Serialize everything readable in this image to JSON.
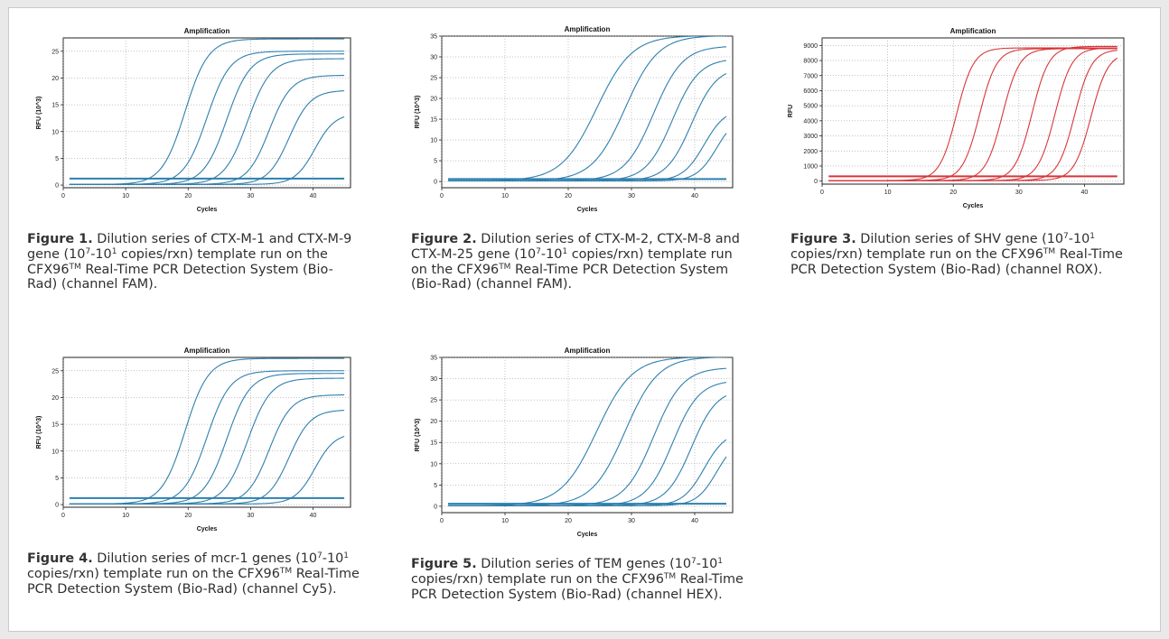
{
  "figures": [
    {
      "caption_label": "Figure 1.",
      "caption_parts": [
        "Dilution series of CTX-M-1 and CTX-M-9 gene (10",
        "7",
        "-10",
        "1",
        " copies/rxn) template run on the CFX96",
        "TM",
        " Real-Time PCR Detection System (Bio-Rad) (channel FAM)."
      ]
    },
    {
      "caption_label": "Figure 2.",
      "caption_parts": [
        "Dilution series of CTX-M-2, CTX-M-8 and CTX-M-25 gene (10",
        "7",
        "-10",
        "1",
        " copies/rxn) template run on the CFX96",
        "TM",
        " Real-Time PCR Detection System (Bio-Rad) (channel FAM)."
      ]
    },
    {
      "caption_label": "Figure 3.",
      "caption_parts": [
        "Dilution series of SHV gene (10",
        "7",
        "-10",
        "1",
        " copies/rxn) template run on the CFX96",
        "TM",
        " Real-Time PCR Detection System (Bio-Rad) (channel ROX)."
      ]
    },
    {
      "caption_label": "Figure 4.",
      "caption_parts": [
        "Dilution series of mcr-1 genes (10",
        "7",
        "-10",
        "1",
        " copies/rxn) template run on the CFX96",
        "TM",
        " Real-Time PCR Detection System (Bio-Rad) (channel Cy5)."
      ]
    },
    {
      "caption_label": "Figure 5.",
      "caption_parts": [
        "Dilution series of TEM genes (10",
        "7",
        "-10",
        "1",
        " copies/rxn) template run on the CFX96",
        "TM",
        " Real-Time PCR Detection System (Bio-Rad) (channel HEX)."
      ]
    }
  ],
  "chart_data": [
    {
      "type": "line",
      "title": "Amplification",
      "xlabel": "Cycles",
      "ylabel": "RFU (10^3)",
      "xlim": [
        0,
        46
      ],
      "ylim": [
        -0.5,
        27.5
      ],
      "xticks": [
        0,
        10,
        20,
        30,
        40
      ],
      "yticks": [
        0,
        5,
        10,
        15,
        20,
        25
      ],
      "grid": true,
      "line_color": "#2e7fae",
      "threshold": 1.2,
      "series": [
        {
          "midpoint": 19.5,
          "plateau": 27.2,
          "slope": 1.85
        },
        {
          "midpoint": 23.0,
          "plateau": 24.9,
          "slope": 1.85
        },
        {
          "midpoint": 26.2,
          "plateau": 24.4,
          "slope": 1.85
        },
        {
          "midpoint": 29.5,
          "plateau": 23.5,
          "slope": 1.85
        },
        {
          "midpoint": 33.0,
          "plateau": 20.4,
          "slope": 1.75
        },
        {
          "midpoint": 36.2,
          "plateau": 17.6,
          "slope": 1.7
        },
        {
          "midpoint": 40.3,
          "plateau": 13.3,
          "slope": 1.6
        }
      ]
    },
    {
      "type": "line",
      "title": "Amplification",
      "xlabel": "Cycles",
      "ylabel": "RFU (10^3)",
      "xlim": [
        0,
        46
      ],
      "ylim": [
        -1.5,
        35
      ],
      "xticks": [
        0,
        10,
        20,
        30,
        40
      ],
      "yticks": [
        0,
        5,
        10,
        15,
        20,
        25,
        30,
        35
      ],
      "grid": true,
      "line_color": "#2e7fae",
      "threshold": 0.6,
      "series": [
        {
          "midpoint": 24.5,
          "plateau": 35.0,
          "slope": 2.8
        },
        {
          "midpoint": 29.0,
          "plateau": 35.0,
          "slope": 2.6
        },
        {
          "midpoint": 33.5,
          "plateau": 32.5,
          "slope": 2.3
        },
        {
          "midpoint": 36.5,
          "plateau": 29.5,
          "slope": 2.1
        },
        {
          "midpoint": 39.5,
          "plateau": 27.5,
          "slope": 2.0
        },
        {
          "midpoint": 41.5,
          "plateau": 17.5,
          "slope": 1.7
        },
        {
          "midpoint": 43.5,
          "plateau": 16.0,
          "slope": 1.6
        }
      ]
    },
    {
      "type": "line",
      "title": "Amplification",
      "xlabel": "Cycles",
      "ylabel": "RFU",
      "xlim": [
        0,
        46
      ],
      "ylim": [
        -200,
        9500
      ],
      "xticks": [
        0,
        10,
        20,
        30,
        40
      ],
      "yticks": [
        0,
        1000,
        2000,
        3000,
        4000,
        5000,
        6000,
        7000,
        8000,
        9000
      ],
      "grid": true,
      "line_color": "#d8363a",
      "threshold": 320,
      "series": [
        {
          "midpoint": 20.5,
          "plateau": 8800,
          "slope": 1.3
        },
        {
          "midpoint": 24.0,
          "plateau": 8750,
          "slope": 1.3
        },
        {
          "midpoint": 27.5,
          "plateau": 8750,
          "slope": 1.3
        },
        {
          "midpoint": 32.0,
          "plateau": 8900,
          "slope": 1.3
        },
        {
          "midpoint": 35.5,
          "plateau": 8800,
          "slope": 1.3
        },
        {
          "midpoint": 38.5,
          "plateau": 8700,
          "slope": 1.3
        },
        {
          "midpoint": 41.0,
          "plateau": 8500,
          "slope": 1.3
        }
      ]
    },
    {
      "type": "line",
      "title": "Amplification",
      "xlabel": "Cycles",
      "ylabel": "RFU (10^3)",
      "xlim": [
        0,
        46
      ],
      "ylim": [
        -0.5,
        27.5
      ],
      "xticks": [
        0,
        10,
        20,
        30,
        40
      ],
      "yticks": [
        0,
        5,
        10,
        15,
        20,
        25
      ],
      "grid": true,
      "line_color": "#2e7fae",
      "threshold": 1.2,
      "series": [
        {
          "midpoint": 19.5,
          "plateau": 27.2,
          "slope": 1.85
        },
        {
          "midpoint": 23.0,
          "plateau": 24.9,
          "slope": 1.85
        },
        {
          "midpoint": 26.2,
          "plateau": 24.4,
          "slope": 1.85
        },
        {
          "midpoint": 29.5,
          "plateau": 23.5,
          "slope": 1.85
        },
        {
          "midpoint": 33.0,
          "plateau": 20.4,
          "slope": 1.75
        },
        {
          "midpoint": 36.2,
          "plateau": 17.6,
          "slope": 1.7
        },
        {
          "midpoint": 40.3,
          "plateau": 13.3,
          "slope": 1.6
        }
      ]
    },
    {
      "type": "line",
      "title": "Amplification",
      "xlabel": "Cycles",
      "ylabel": "RFU (10^3)",
      "xlim": [
        0,
        46
      ],
      "ylim": [
        -1.5,
        35
      ],
      "xticks": [
        0,
        10,
        20,
        30,
        40
      ],
      "yticks": [
        0,
        5,
        10,
        15,
        20,
        25,
        30,
        35
      ],
      "grid": true,
      "line_color": "#2e7fae",
      "threshold": 0.6,
      "series": [
        {
          "midpoint": 24.5,
          "plateau": 35.0,
          "slope": 2.8
        },
        {
          "midpoint": 29.0,
          "plateau": 35.0,
          "slope": 2.6
        },
        {
          "midpoint": 33.5,
          "plateau": 32.5,
          "slope": 2.3
        },
        {
          "midpoint": 36.5,
          "plateau": 29.5,
          "slope": 2.1
        },
        {
          "midpoint": 39.5,
          "plateau": 27.5,
          "slope": 2.0
        },
        {
          "midpoint": 41.5,
          "plateau": 17.5,
          "slope": 1.7
        },
        {
          "midpoint": 43.5,
          "plateau": 16.0,
          "slope": 1.6
        }
      ]
    }
  ]
}
